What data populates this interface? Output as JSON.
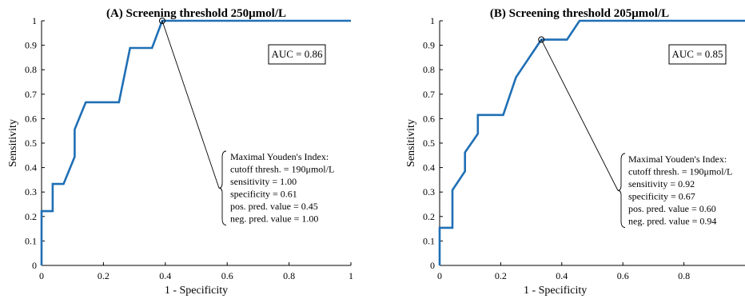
{
  "chart_data": [
    {
      "type": "line",
      "title": "(A) Screening threshold 250μmol/L",
      "xlabel": "1 - Specificity",
      "ylabel": "Sensitivity",
      "xlim": [
        0,
        1
      ],
      "ylim": [
        0,
        1
      ],
      "xticks": [
        "0",
        "0.2",
        "0.4",
        "0.6",
        "0.8",
        "1"
      ],
      "yticks": [
        "0",
        "0.1",
        "0.2",
        "0.3",
        "0.4",
        "0.5",
        "0.6",
        "0.7",
        "0.8",
        "0.9",
        "1"
      ],
      "grid": false,
      "auc_label": "AUC = 0.86",
      "line_color": "#1f6fb5",
      "roc": {
        "x": [
          0,
          0,
          0.036,
          0.036,
          0.071,
          0.107,
          0.107,
          0.143,
          0.25,
          0.286,
          0.357,
          0.39,
          0.39,
          1.0
        ],
        "y": [
          0,
          0.222,
          0.222,
          0.333,
          0.333,
          0.444,
          0.556,
          0.667,
          0.667,
          0.889,
          0.889,
          1.0,
          1.0,
          1.0
        ]
      },
      "optimal_point": {
        "x": 0.39,
        "y": 1.0
      },
      "annotation": [
        "Maximal Youden's Index:",
        "cutoff thresh. = 190μmol/L",
        "sensitivity = 1.00",
        "specificity = 0.61",
        "pos. pred. value = 0.45",
        "neg. pred. value = 1.00"
      ]
    },
    {
      "type": "line",
      "title": "(B) Screening threshold 205μmol/L",
      "xlabel": "1 - Specificity",
      "ylabel": "Sensitivity",
      "xlim": [
        0,
        1
      ],
      "ylim": [
        0,
        1
      ],
      "xticks": [
        "0",
        "0.2",
        "0.4",
        "0.6",
        "0.8"
      ],
      "yticks": [
        "0",
        "0.1",
        "0.2",
        "0.3",
        "0.4",
        "0.5",
        "0.6",
        "0.7",
        "0.8",
        "0.9",
        "1"
      ],
      "grid": false,
      "auc_label": "AUC = 0.85",
      "line_color": "#1f6fb5",
      "roc": {
        "x": [
          0,
          0,
          0.042,
          0.042,
          0.083,
          0.083,
          0.125,
          0.125,
          0.208,
          0.25,
          0.333,
          0.417,
          0.458,
          1.0
        ],
        "y": [
          0,
          0.154,
          0.154,
          0.308,
          0.385,
          0.462,
          0.538,
          0.615,
          0.615,
          0.769,
          0.923,
          0.923,
          1.0,
          1.0
        ]
      },
      "optimal_point": {
        "x": 0.333,
        "y": 0.923
      },
      "annotation": [
        "Maximal Youden's Index:",
        "cutoff thresh. = 190μmol/L",
        "sensitivity = 0.92",
        "specificity = 0.67",
        "pos. pred. value = 0.60",
        "neg. pred. value = 0.94"
      ]
    }
  ]
}
